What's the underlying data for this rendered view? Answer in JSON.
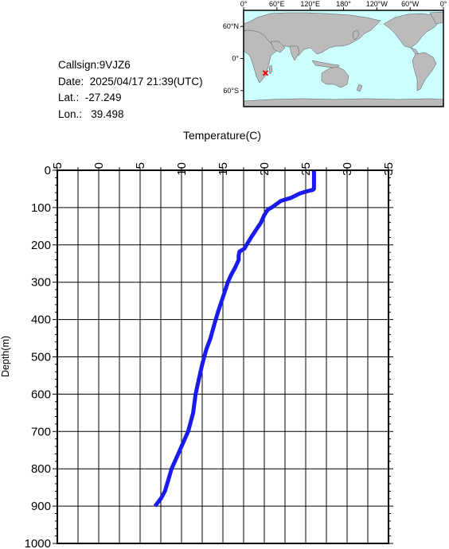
{
  "info": {
    "callsign": "Callsign:9VJZ6",
    "date": "Date:  2025/04/17 21:39(UTC)",
    "lat": "Lat.:  -27.249",
    "lon": "Lon.:   39.498"
  },
  "map": {
    "lon_labels": [
      "0°",
      "60°E",
      "120°E",
      "180°",
      "120°W",
      "60°W",
      "0°"
    ],
    "lat_labels": [
      "60°N",
      "0°",
      "60°S"
    ],
    "station": {
      "lat": -27.249,
      "lon": 39.498
    },
    "colors": {
      "ocean": "#ccffff",
      "land": "#bbbbbb",
      "marker": "#ff0000"
    }
  },
  "chart_data": {
    "type": "line",
    "xlabel": "Temperature(C)",
    "ylabel": "Depth(m)",
    "xlim": [
      -5,
      35
    ],
    "ylim": [
      0,
      1000
    ],
    "y_inverted": true,
    "x_ticks": [
      "-5",
      "0",
      "5",
      "10",
      "15",
      "20",
      "25",
      "30",
      "35"
    ],
    "y_ticks": [
      "0",
      "100",
      "200",
      "300",
      "400",
      "500",
      "600",
      "700",
      "800",
      "900",
      "1000"
    ],
    "grid": true,
    "series": [
      {
        "color": "#1a1aee",
        "points": [
          [
            26.0,
            0
          ],
          [
            26.0,
            50
          ],
          [
            25.9,
            52
          ],
          [
            24.9,
            58
          ],
          [
            24.3,
            62
          ],
          [
            23.2,
            74
          ],
          [
            22.0,
            82
          ],
          [
            21.0,
            98
          ],
          [
            20.4,
            106
          ],
          [
            20.0,
            120
          ],
          [
            19.6,
            140
          ],
          [
            19.0,
            160
          ],
          [
            18.4,
            180
          ],
          [
            17.9,
            198
          ],
          [
            17.6,
            210
          ],
          [
            17.0,
            218
          ],
          [
            16.9,
            228
          ],
          [
            16.9,
            240
          ],
          [
            16.5,
            260
          ],
          [
            16.0,
            280
          ],
          [
            15.6,
            300
          ],
          [
            15.0,
            340
          ],
          [
            14.4,
            380
          ],
          [
            14.0,
            410
          ],
          [
            13.5,
            450
          ],
          [
            13.0,
            480
          ],
          [
            12.5,
            520
          ],
          [
            12.1,
            560
          ],
          [
            11.7,
            600
          ],
          [
            11.4,
            650
          ],
          [
            10.8,
            700
          ],
          [
            10.0,
            740
          ],
          [
            9.4,
            770
          ],
          [
            8.8,
            800
          ],
          [
            8.4,
            830
          ],
          [
            8.0,
            860
          ],
          [
            7.5,
            880
          ],
          [
            6.8,
            900
          ]
        ]
      }
    ]
  }
}
